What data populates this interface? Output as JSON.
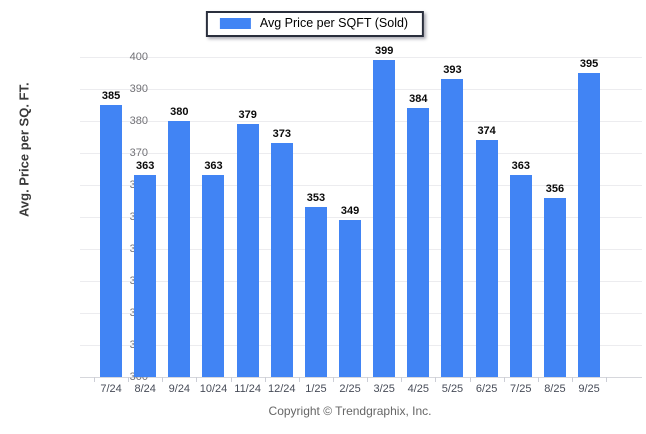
{
  "legend": {
    "label": "Avg Price per SQFT (Sold)",
    "swatch_color": "#4184f4"
  },
  "footer": {
    "text": "Copyright © Trendgraphix, Inc."
  },
  "colors": {
    "bar": "#4184f4",
    "gridline": "#ececef",
    "axis_line": "#d6d7dc",
    "value_label": "#0a0a0a",
    "x_tick_label": "#474c58",
    "y_tick_label": "#717176"
  },
  "chart_data": {
    "type": "bar",
    "title": "",
    "series_name": "Avg Price per SQFT (Sold)",
    "categories": [
      "7/24",
      "8/24",
      "9/24",
      "10/24",
      "11/24",
      "12/24",
      "1/25",
      "2/25",
      "3/25",
      "4/25",
      "5/25",
      "6/25",
      "7/25",
      "8/25",
      "9/25"
    ],
    "values": [
      385,
      363,
      380,
      363,
      379,
      373,
      353,
      349,
      399,
      384,
      393,
      374,
      363,
      356,
      395
    ],
    "xlabel": "",
    "ylabel": "Avg. Price per SQ. FT.",
    "ylim": [
      300,
      400
    ],
    "ytick_step": 10,
    "grid": true,
    "legend_position": "top-center",
    "value_labels": true,
    "bar_color": "#4184f4"
  }
}
